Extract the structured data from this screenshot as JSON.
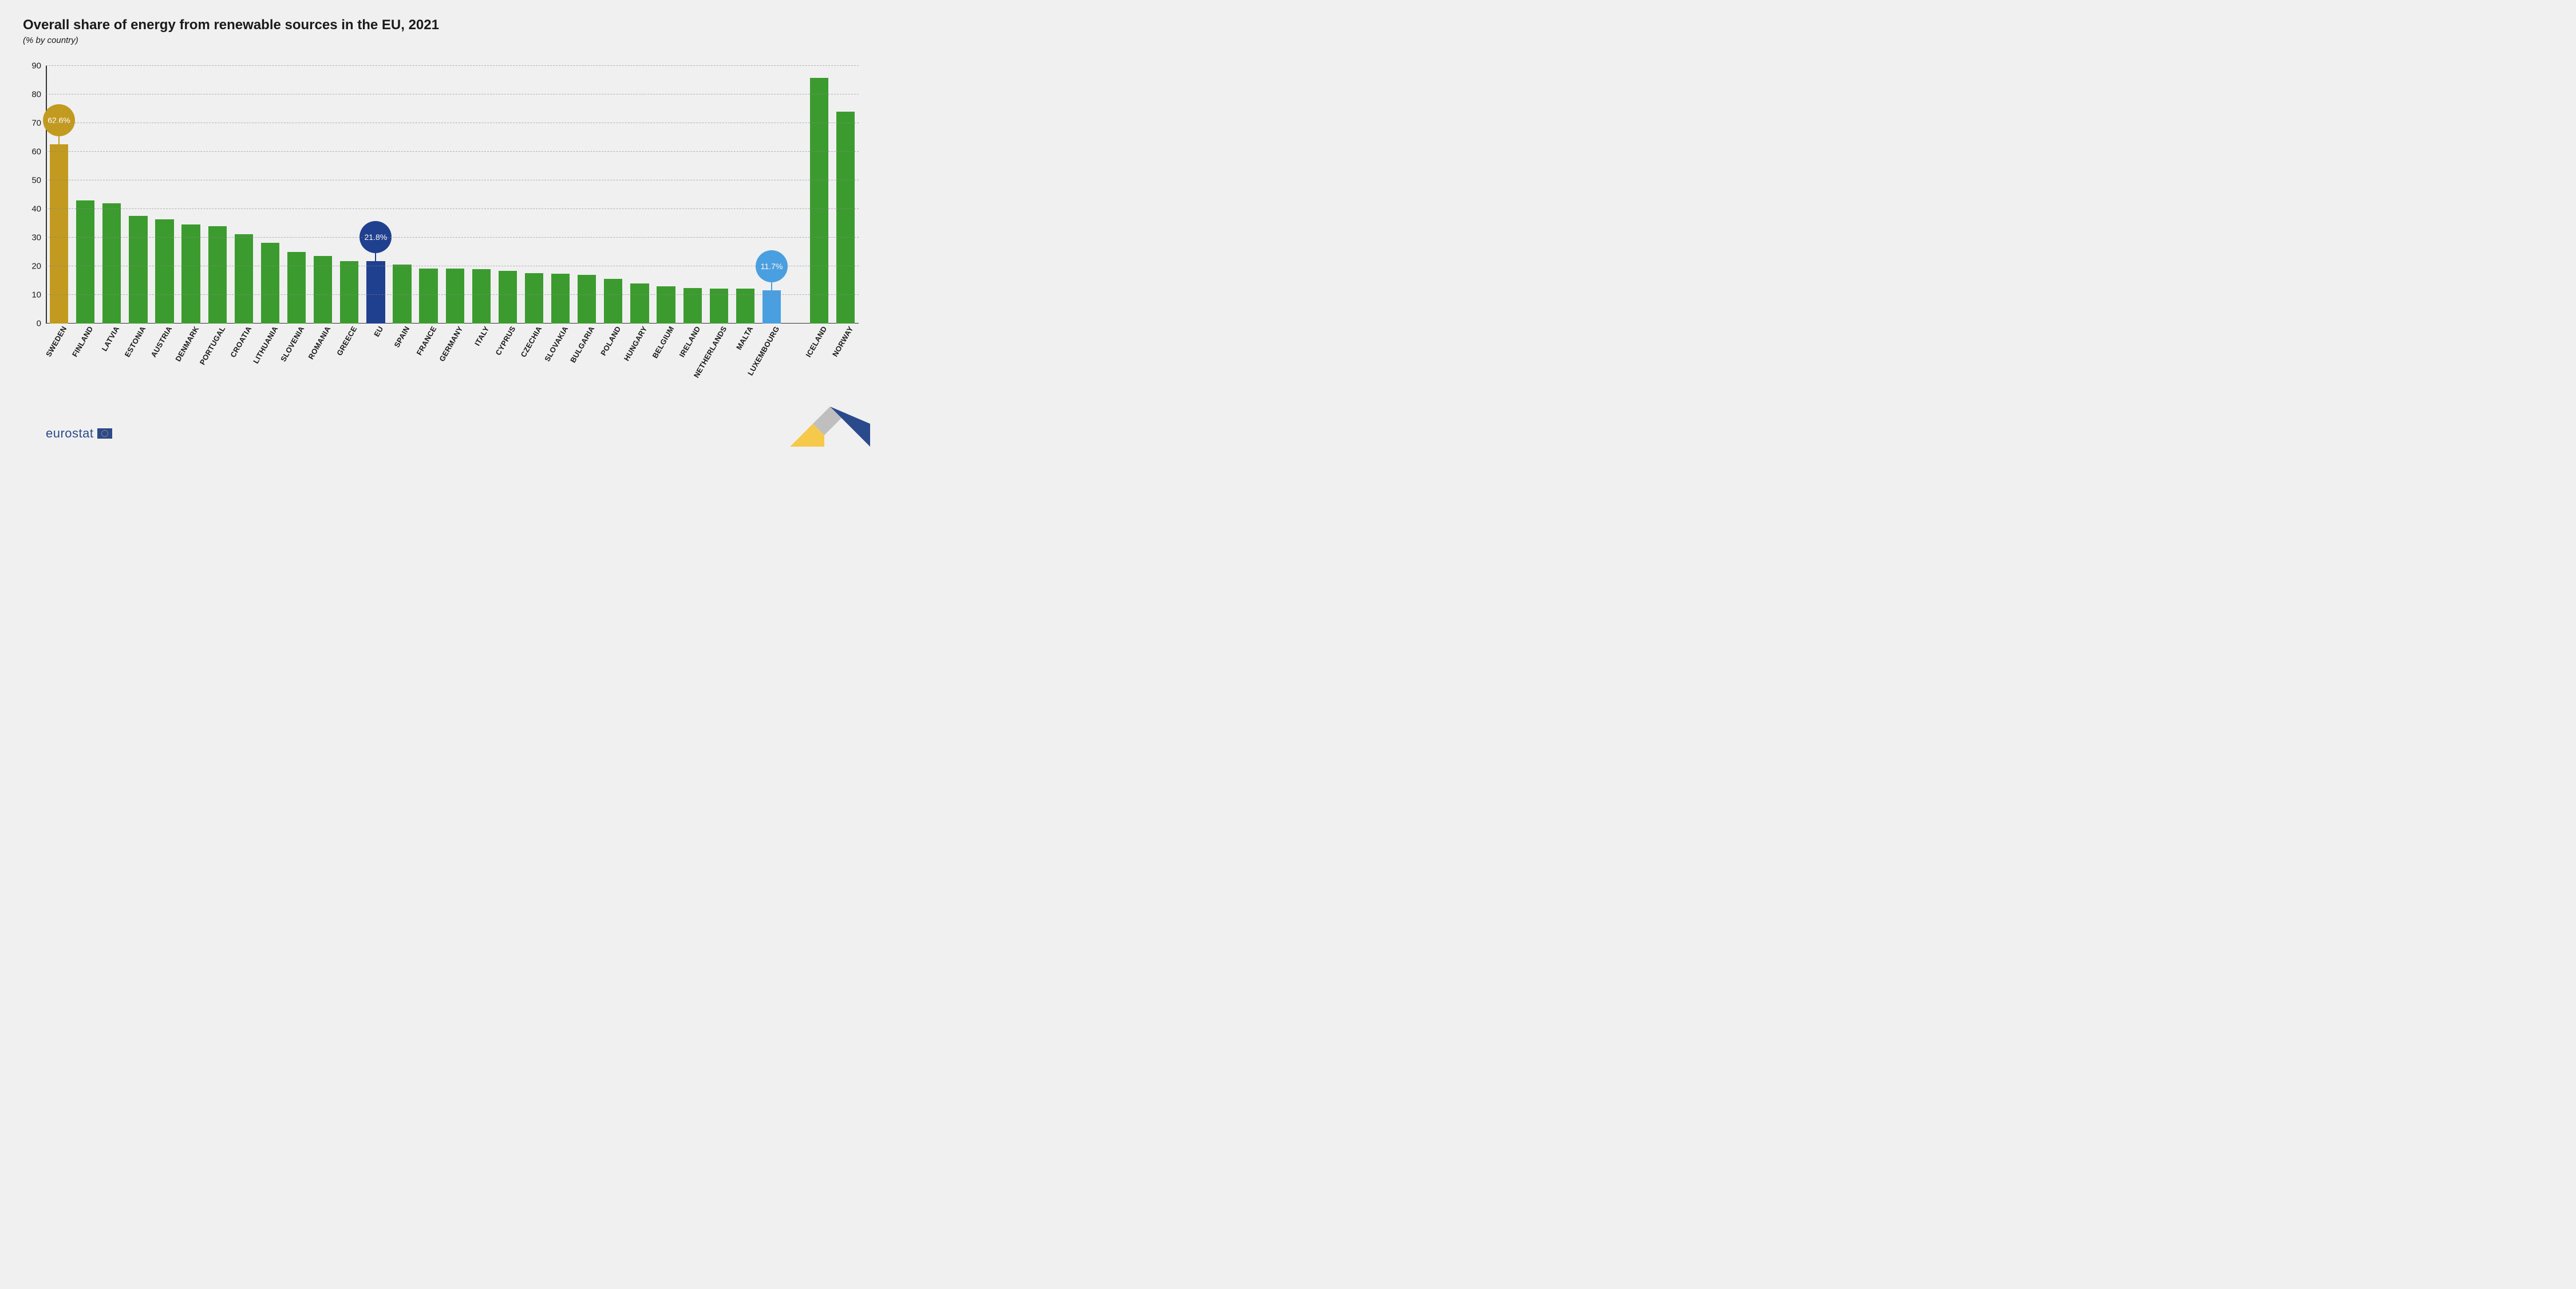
{
  "chart": {
    "type": "bar",
    "title": "Overall share of energy from renewable sources in the EU, 2021",
    "subtitle": "(% by country)",
    "title_fontsize": 24,
    "subtitle_fontsize": 15,
    "background_color": "#f0f0f0",
    "ylim": [
      0,
      90
    ],
    "ytick_step": 10,
    "yticks": [
      0,
      10,
      20,
      30,
      40,
      50,
      60,
      70,
      80,
      90
    ],
    "grid_color": "#888888",
    "grid_dash": true,
    "axis_color": "#333333",
    "bar_width_ratio": 0.7,
    "label_fontsize": 13,
    "tick_fontsize": 15,
    "colors": {
      "default_bar": "#3c9b2f",
      "highlight_max": "#c29a1f",
      "highlight_eu": "#1f3f8f",
      "highlight_min": "#4a9fe0"
    },
    "groups": [
      {
        "items": [
          {
            "label": "SWEDEN",
            "value": 62.6,
            "color": "#c29a1f",
            "callout": "62.6%",
            "callout_color": "#c29a1f"
          },
          {
            "label": "FINLAND",
            "value": 43.1,
            "color": "#3c9b2f"
          },
          {
            "label": "LATVIA",
            "value": 42.1,
            "color": "#3c9b2f"
          },
          {
            "label": "ESTONIA",
            "value": 37.6,
            "color": "#3c9b2f"
          },
          {
            "label": "AUSTRIA",
            "value": 36.4,
            "color": "#3c9b2f"
          },
          {
            "label": "DENMARK",
            "value": 34.7,
            "color": "#3c9b2f"
          },
          {
            "label": "PORTUGAL",
            "value": 34.0,
            "color": "#3c9b2f"
          },
          {
            "label": "CROATIA",
            "value": 31.3,
            "color": "#3c9b2f"
          },
          {
            "label": "LITHUANIA",
            "value": 28.2,
            "color": "#3c9b2f"
          },
          {
            "label": "SLOVENIA",
            "value": 25.0,
            "color": "#3c9b2f"
          },
          {
            "label": "ROMANIA",
            "value": 23.6,
            "color": "#3c9b2f"
          },
          {
            "label": "GREECE",
            "value": 21.9,
            "color": "#3c9b2f"
          },
          {
            "label": "EU",
            "value": 21.8,
            "color": "#1f3f8f",
            "callout": "21.8%",
            "callout_color": "#1f3f8f",
            "bold": true
          },
          {
            "label": "SPAIN",
            "value": 20.7,
            "color": "#3c9b2f"
          },
          {
            "label": "FRANCE",
            "value": 19.3,
            "color": "#3c9b2f"
          },
          {
            "label": "GERMANY",
            "value": 19.2,
            "color": "#3c9b2f"
          },
          {
            "label": "ITALY",
            "value": 19.0,
            "color": "#3c9b2f"
          },
          {
            "label": "CYPRUS",
            "value": 18.4,
            "color": "#3c9b2f"
          },
          {
            "label": "CZECHIA",
            "value": 17.7,
            "color": "#3c9b2f"
          },
          {
            "label": "SLOVAKIA",
            "value": 17.4,
            "color": "#3c9b2f"
          },
          {
            "label": "BULGARIA",
            "value": 17.0,
            "color": "#3c9b2f"
          },
          {
            "label": "POLAND",
            "value": 15.6,
            "color": "#3c9b2f"
          },
          {
            "label": "HUNGARY",
            "value": 14.1,
            "color": "#3c9b2f"
          },
          {
            "label": "BELGIUM",
            "value": 13.0,
            "color": "#3c9b2f"
          },
          {
            "label": "IRELAND",
            "value": 12.5,
            "color": "#3c9b2f"
          },
          {
            "label": "NETHERLANDS",
            "value": 12.3,
            "color": "#3c9b2f"
          },
          {
            "label": "MALTA",
            "value": 12.2,
            "color": "#3c9b2f"
          },
          {
            "label": "LUXEMBOURG",
            "value": 11.7,
            "color": "#4a9fe0",
            "callout": "11.7%",
            "callout_color": "#4a9fe0"
          }
        ]
      },
      {
        "items": [
          {
            "label": "ICELAND",
            "value": 85.8,
            "color": "#3c9b2f"
          },
          {
            "label": "NORWAY",
            "value": 74.1,
            "color": "#3c9b2f"
          }
        ]
      }
    ]
  },
  "branding": {
    "logo_text": "eurostat",
    "logo_color": "#2b4a8b",
    "swoosh_colors": {
      "yellow": "#f6c94a",
      "grey": "#bfbfbf",
      "blue": "#2b4a8b"
    }
  }
}
